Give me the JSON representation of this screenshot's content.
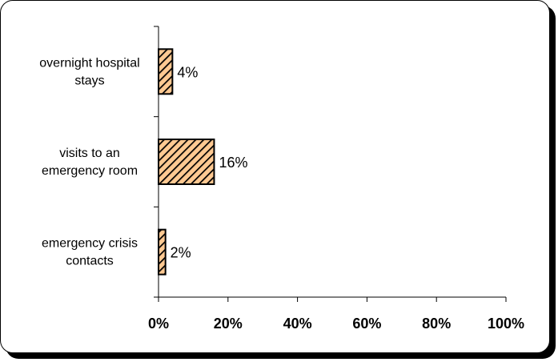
{
  "chart_data": {
    "type": "bar",
    "orientation": "horizontal",
    "categories": [
      [
        "overnight hospital",
        "stays"
      ],
      [
        "visits to an",
        "emergency room"
      ],
      [
        "emergency crisis",
        "contacts"
      ]
    ],
    "values": [
      4,
      16,
      2
    ],
    "value_labels": [
      "4%",
      "16%",
      "2%"
    ],
    "x_ticks": [
      "0%",
      "20%",
      "40%",
      "60%",
      "80%",
      "100%"
    ],
    "xlim": [
      0,
      100
    ],
    "grid": false,
    "legend": "none",
    "bar_fill": "#FFC992",
    "bar_hatch": "#000000"
  }
}
